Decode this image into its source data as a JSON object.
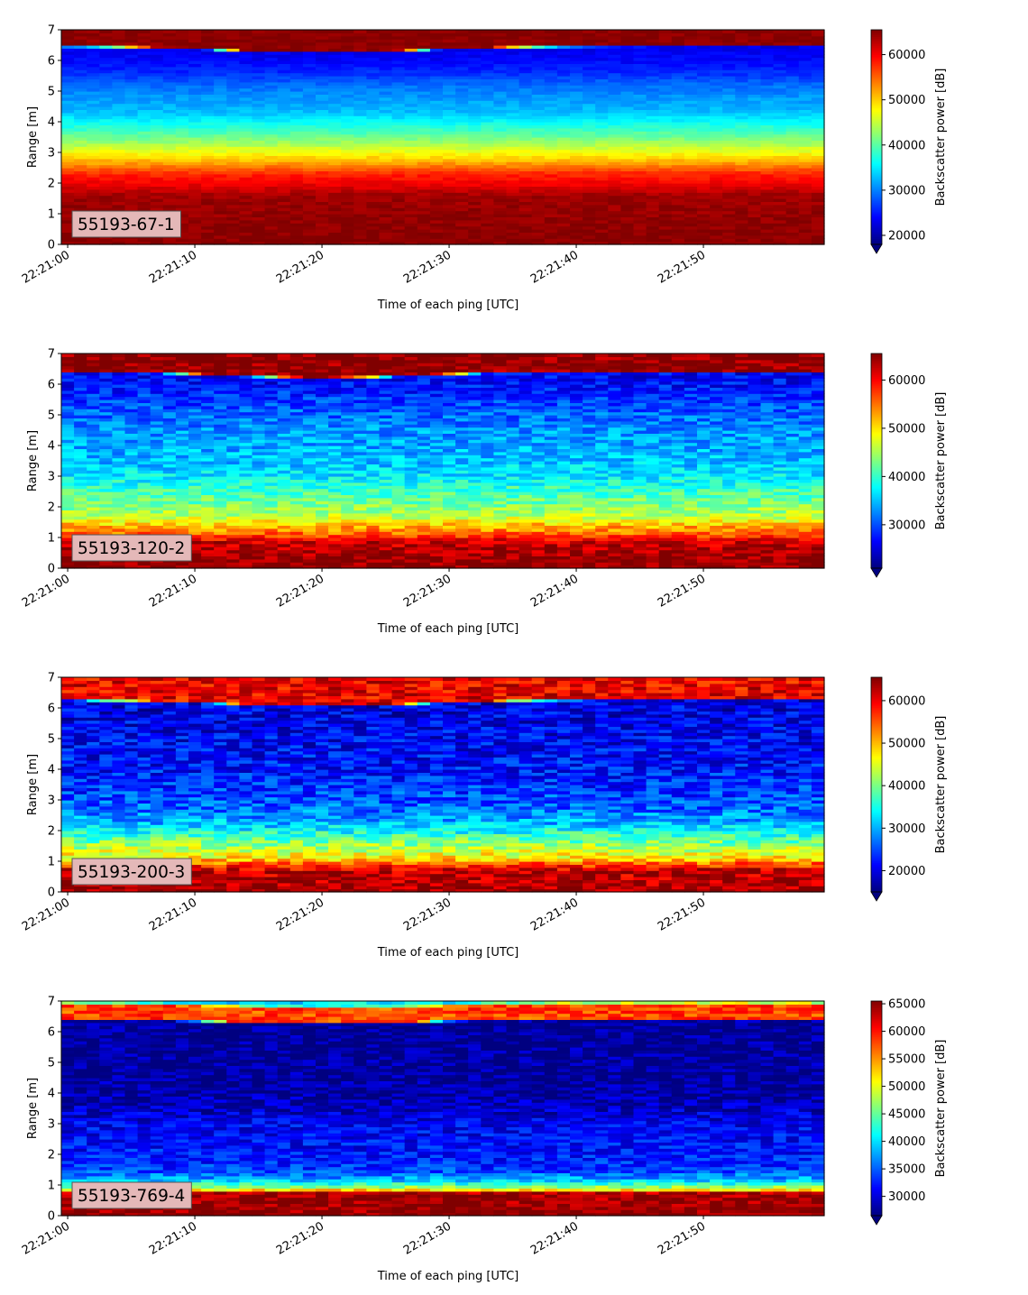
{
  "chart_data": [
    {
      "type": "heatmap",
      "label": "55193-67-1",
      "xlabel": "Time of each ping [UTC]",
      "ylabel": "Range [m]",
      "colorbar_label": "Backscatter power [dB]",
      "x_ticks": [
        "22:21:00",
        "22:21:10",
        "22:21:20",
        "22:21:30",
        "22:21:40",
        "22:21:50"
      ],
      "y_ticks": [
        0,
        1,
        2,
        3,
        4,
        5,
        6,
        7
      ],
      "ylim": [
        0,
        7
      ],
      "x_range_seconds": [
        -0.5,
        59.5
      ],
      "clim": [
        18000,
        65500
      ],
      "cbar_ticks": [
        20000,
        30000,
        40000,
        50000,
        60000
      ],
      "cbar_tick_labels": [
        "20000",
        "30000",
        "40000",
        "50000",
        "60000"
      ],
      "colormap": "jet",
      "colorbar_extend": "min",
      "surface_range_m": 6.45,
      "surface_dip_m": 0.2,
      "profile_m": [
        [
          0.0,
          65000
        ],
        [
          0.25,
          65000
        ],
        [
          1.6,
          64000
        ],
        [
          1.8,
          62000
        ],
        [
          2.0,
          60000
        ],
        [
          2.3,
          58000
        ],
        [
          2.55,
          54000
        ],
        [
          2.8,
          50000
        ],
        [
          3.1,
          46000
        ],
        [
          3.5,
          41000
        ],
        [
          3.9,
          37000
        ],
        [
          4.3,
          33000
        ],
        [
          4.8,
          31000
        ],
        [
          5.2,
          29000
        ],
        [
          5.6,
          26000
        ],
        [
          6.0,
          24000
        ],
        [
          6.45,
          23000
        ],
        [
          6.5,
          65000
        ],
        [
          7.0,
          65000
        ]
      ]
    },
    {
      "type": "heatmap",
      "label": "55193-120-2",
      "xlabel": "Time of each ping [UTC]",
      "ylabel": "Range [m]",
      "colorbar_label": "Backscatter power [dB]",
      "x_ticks": [
        "22:21:00",
        "22:21:10",
        "22:21:20",
        "22:21:30",
        "22:21:40",
        "22:21:50"
      ],
      "y_ticks": [
        0,
        1,
        2,
        3,
        4,
        5,
        6,
        7
      ],
      "ylim": [
        0,
        7
      ],
      "x_range_seconds": [
        -0.5,
        59.5
      ],
      "clim": [
        21000,
        65500
      ],
      "cbar_ticks": [
        30000,
        40000,
        50000,
        60000
      ],
      "cbar_tick_labels": [
        "30000",
        "40000",
        "50000",
        "60000"
      ],
      "colormap": "jet",
      "colorbar_extend": "min",
      "surface_range_m": 6.4,
      "surface_dip_m": 0.2,
      "profile_m": [
        [
          0.0,
          65000
        ],
        [
          0.2,
          65000
        ],
        [
          0.9,
          62000
        ],
        [
          1.1,
          56000
        ],
        [
          1.4,
          52000
        ],
        [
          1.7,
          46000
        ],
        [
          2.1,
          43000
        ],
        [
          2.6,
          40000
        ],
        [
          3.0,
          37000
        ],
        [
          3.5,
          35000
        ],
        [
          4.0,
          34000
        ],
        [
          4.5,
          33000
        ],
        [
          5.0,
          31000
        ],
        [
          5.5,
          29000
        ],
        [
          6.0,
          27000
        ],
        [
          6.4,
          26000
        ],
        [
          6.45,
          65000
        ],
        [
          7.0,
          65000
        ]
      ]
    },
    {
      "type": "heatmap",
      "label": "55193-200-3",
      "xlabel": "Time of each ping [UTC]",
      "ylabel": "Range [m]",
      "colorbar_label": "Backscatter power [dB]",
      "x_ticks": [
        "22:21:00",
        "22:21:10",
        "22:21:20",
        "22:21:30",
        "22:21:40",
        "22:21:50"
      ],
      "y_ticks": [
        0,
        1,
        2,
        3,
        4,
        5,
        6,
        7
      ],
      "ylim": [
        0,
        7
      ],
      "x_range_seconds": [
        -0.5,
        59.5
      ],
      "clim": [
        15000,
        65500
      ],
      "cbar_ticks": [
        20000,
        30000,
        40000,
        50000,
        60000
      ],
      "cbar_tick_labels": [
        "20000",
        "30000",
        "40000",
        "50000",
        "60000"
      ],
      "colormap": "jet",
      "colorbar_extend": "min",
      "surface_range_m": 6.25,
      "surface_dip_m": 0.2,
      "profile_m": [
        [
          0.0,
          64000
        ],
        [
          0.1,
          64000
        ],
        [
          0.7,
          62000
        ],
        [
          0.9,
          56000
        ],
        [
          1.1,
          48000
        ],
        [
          1.5,
          42000
        ],
        [
          1.9,
          36000
        ],
        [
          2.3,
          30000
        ],
        [
          2.8,
          26000
        ],
        [
          3.3,
          24000
        ],
        [
          4.0,
          22000
        ],
        [
          5.0,
          21000
        ],
        [
          5.8,
          20000
        ],
        [
          6.25,
          20000
        ],
        [
          6.3,
          60000
        ],
        [
          7.0,
          60000
        ]
      ]
    },
    {
      "type": "heatmap",
      "label": "55193-769-4",
      "xlabel": "Time of each ping [UTC]",
      "ylabel": "Range [m]",
      "colorbar_label": "Backscatter power [dB]",
      "x_ticks": [
        "22:21:00",
        "22:21:10",
        "22:21:20",
        "22:21:30",
        "22:21:40",
        "22:21:50"
      ],
      "y_ticks": [
        0,
        1,
        2,
        3,
        4,
        5,
        6,
        7
      ],
      "ylim": [
        0,
        7
      ],
      "x_range_seconds": [
        -0.5,
        59.5
      ],
      "clim": [
        26500,
        65500
      ],
      "cbar_ticks": [
        30000,
        35000,
        40000,
        45000,
        50000,
        55000,
        60000,
        65000
      ],
      "cbar_tick_labels": [
        "30000",
        "35000",
        "40000",
        "45000",
        "50000",
        "55000",
        "60000",
        "65000"
      ],
      "colormap": "jet",
      "colorbar_extend": "min",
      "surface_range_m": 6.4,
      "surface_dip_m": 0.15,
      "profile_m": [
        [
          0.0,
          65000
        ],
        [
          0.25,
          65000
        ],
        [
          0.75,
          64000
        ],
        [
          0.85,
          52000
        ],
        [
          1.0,
          44000
        ],
        [
          1.2,
          38000
        ],
        [
          1.5,
          33500
        ],
        [
          2.0,
          32000
        ],
        [
          2.5,
          31500
        ],
        [
          3.0,
          31000
        ],
        [
          3.5,
          29000
        ],
        [
          4.0,
          27500
        ],
        [
          6.4,
          27000
        ],
        [
          6.45,
          58000
        ],
        [
          6.9,
          58000
        ],
        [
          7.0,
          40000
        ]
      ]
    }
  ]
}
